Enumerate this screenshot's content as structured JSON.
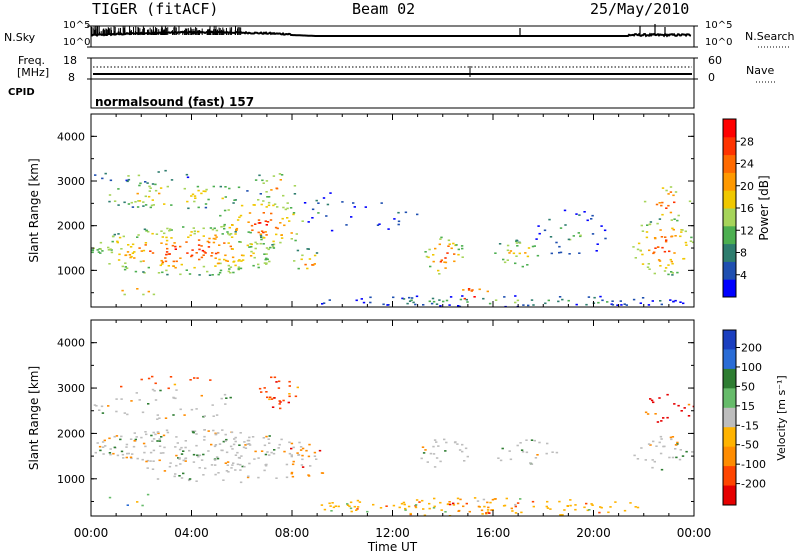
{
  "header": {
    "title": "TIGER (fitACF)",
    "beam": "Beam 02",
    "date": "25/May/2010"
  },
  "top_panels": {
    "nsky_label": "N.Sky",
    "nsky_top_tick": "10^5",
    "nsky_bottom_tick": "10^0",
    "nsearch_label": "N.Search",
    "nsearch_top_tick": "10^5",
    "nsearch_bottom_tick": "10^0",
    "freq_label": "Freq.",
    "freq_unit": "[MHz]",
    "freq_top_tick": "18",
    "freq_bottom_tick": "8",
    "nave_label": "Nave",
    "nave_top_tick": "60",
    "nave_bottom_tick": "0",
    "cpid_label": "CPID",
    "cpid_value": "normalsound (fast) 157"
  },
  "colors": {
    "power_scale": [
      "#0000ff",
      "#1f4fb0",
      "#2e7d6e",
      "#4caf50",
      "#a6d45a",
      "#f0c800",
      "#ff9900",
      "#ff6a00",
      "#ff3300",
      "#ff0000"
    ],
    "velocity_scale": [
      "#1b3fbf",
      "#2a6cd6",
      "#2e7d32",
      "#66bb6a",
      "#bdbdbd",
      "#ffb300",
      "#ff8c00",
      "#ff4500",
      "#e60000"
    ]
  },
  "chart_data": [
    {
      "type": "heatmap",
      "name": "power",
      "ylabel": "Slant Range [km]",
      "ylim": [
        180,
        4500
      ],
      "yticks": [
        "1000",
        "2000",
        "3000",
        "4000"
      ],
      "colorbar_label": "Power [dB]",
      "colorbar_ticks": [
        "4",
        "8",
        "12",
        "16",
        "20",
        "24",
        "28"
      ],
      "colorbar_range": [
        0,
        32
      ]
    },
    {
      "type": "heatmap",
      "name": "velocity",
      "ylabel": "Slant Range [km]",
      "ylim": [
        180,
        4500
      ],
      "yticks": [
        "1000",
        "2000",
        "3000",
        "4000"
      ],
      "colorbar_label": "Velocity [m s⁻¹]",
      "colorbar_ticks": [
        "200",
        "100",
        "50",
        "15",
        "-15",
        "-50",
        "-100",
        "-200"
      ]
    }
  ],
  "xaxis": {
    "label": "Time UT",
    "ticks": [
      "00:00",
      "04:00",
      "08:00",
      "12:00",
      "16:00",
      "20:00",
      "00:00"
    ],
    "xlim_hours": [
      0,
      24
    ]
  }
}
